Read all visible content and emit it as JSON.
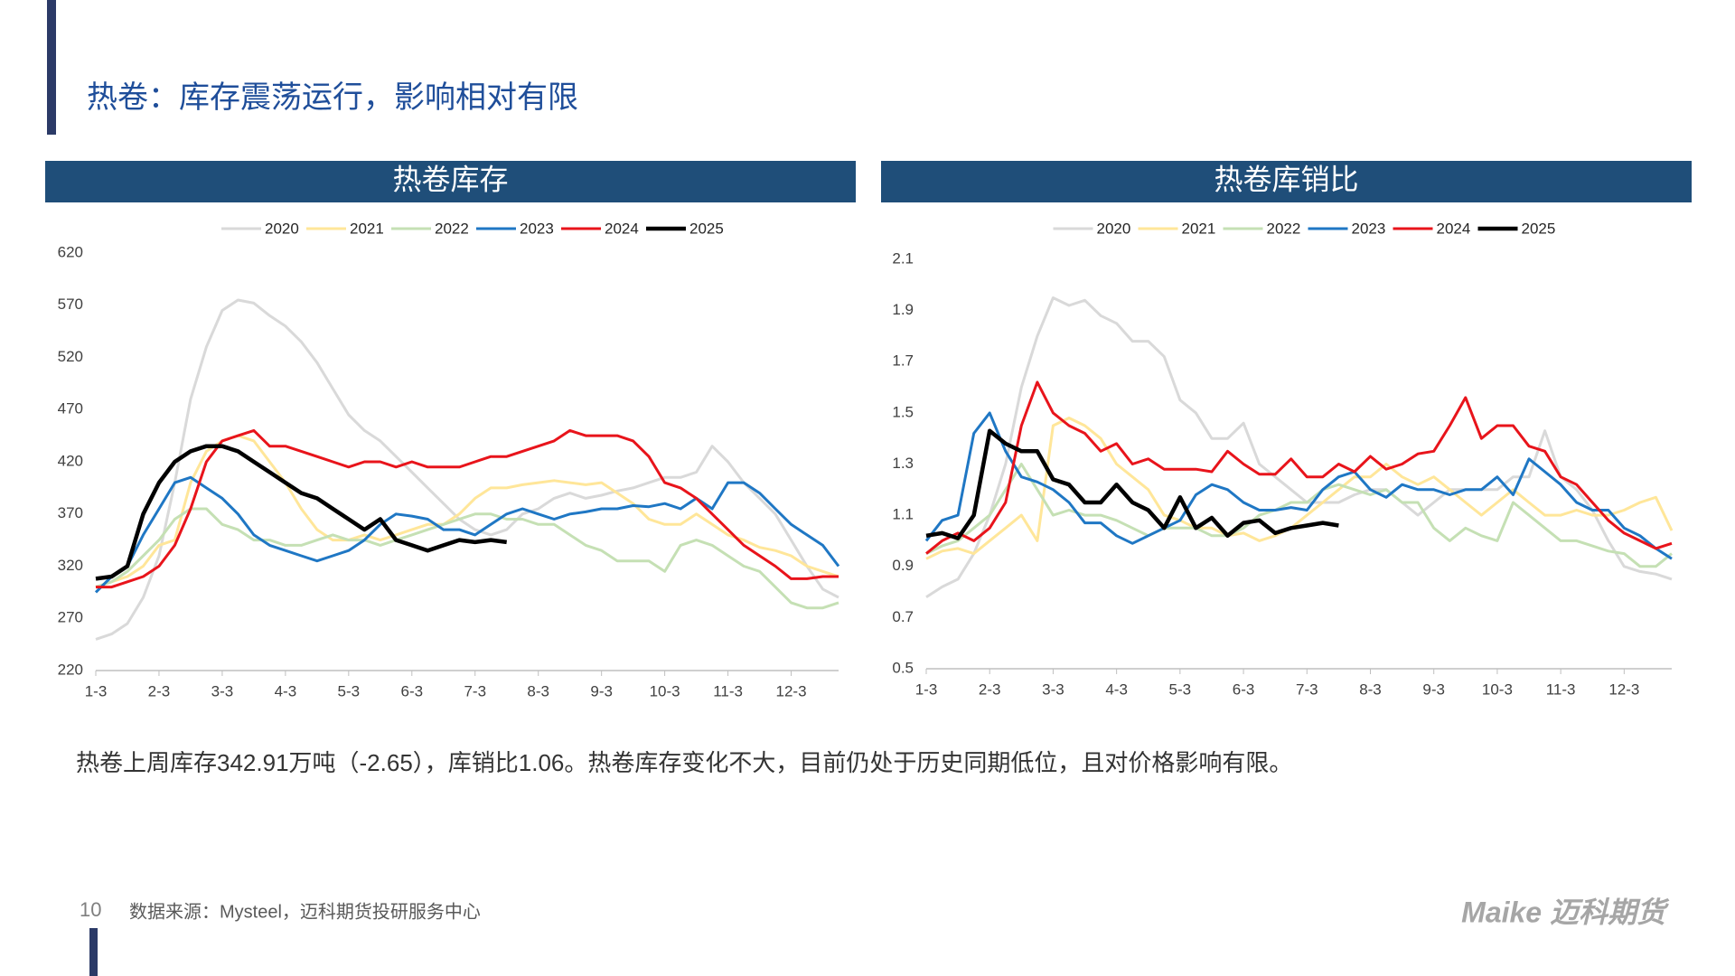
{
  "title": "热卷：库存震荡运行，影响相对有限",
  "summary": "热卷上周库存342.91万吨（-2.65），库销比1.06。热卷库存变化不大，目前仍处于历史同期低位，且对价格影响有限。",
  "page_number": "10",
  "source": "数据来源：Mysteel，迈科期货投研服务中心",
  "logo": "Maike 迈科期货",
  "chart_data": [
    {
      "type": "line",
      "title": "热卷库存",
      "categories": [
        "1-3",
        null,
        null,
        null,
        "2-3",
        null,
        null,
        null,
        "3-3",
        null,
        null,
        null,
        "4-3",
        null,
        null,
        null,
        "5-3",
        null,
        null,
        null,
        "6-3",
        null,
        null,
        null,
        "7-3",
        null,
        null,
        null,
        "8-3",
        null,
        null,
        null,
        "9-3",
        null,
        null,
        null,
        "10-3",
        null,
        null,
        null,
        "11-3",
        null,
        null,
        null,
        "12-3",
        null,
        null,
        null
      ],
      "ylim": [
        220,
        620
      ],
      "yticks": [
        220,
        270,
        320,
        370,
        420,
        470,
        520,
        570,
        620
      ],
      "series": [
        {
          "name": "2020",
          "color": "#d9d9d9",
          "values": [
            250,
            255,
            265,
            290,
            330,
            400,
            480,
            530,
            565,
            575,
            572,
            560,
            550,
            535,
            515,
            490,
            465,
            450,
            440,
            425,
            410,
            395,
            380,
            365,
            355,
            350,
            355,
            370,
            375,
            385,
            390,
            385,
            388,
            392,
            395,
            400,
            405,
            405,
            410,
            435,
            420,
            400,
            385,
            370,
            345,
            320,
            298,
            290
          ]
        },
        {
          "name": "2021",
          "color": "#ffe699",
          "values": [
            300,
            305,
            310,
            320,
            340,
            345,
            400,
            430,
            440,
            445,
            440,
            420,
            400,
            375,
            355,
            345,
            345,
            350,
            345,
            350,
            355,
            360,
            360,
            370,
            385,
            395,
            395,
            398,
            400,
            402,
            400,
            398,
            400,
            390,
            380,
            365,
            360,
            360,
            370,
            360,
            350,
            345,
            338,
            335,
            330,
            320,
            315,
            310
          ]
        },
        {
          "name": "2022",
          "color": "#c5e0b4",
          "values": [
            300,
            305,
            315,
            330,
            345,
            365,
            375,
            375,
            360,
            355,
            345,
            345,
            340,
            340,
            345,
            350,
            345,
            345,
            340,
            345,
            350,
            355,
            360,
            365,
            370,
            370,
            365,
            365,
            360,
            360,
            350,
            340,
            335,
            325,
            325,
            325,
            315,
            340,
            345,
            340,
            330,
            320,
            315,
            300,
            285,
            280,
            280,
            285
          ]
        },
        {
          "name": "2023",
          "color": "#1f77c4",
          "values": [
            295,
            310,
            320,
            350,
            375,
            400,
            405,
            395,
            385,
            370,
            350,
            340,
            335,
            330,
            325,
            330,
            335,
            345,
            360,
            370,
            368,
            365,
            355,
            355,
            350,
            360,
            370,
            375,
            370,
            365,
            370,
            372,
            375,
            375,
            378,
            377,
            380,
            375,
            385,
            375,
            400,
            400,
            390,
            375,
            360,
            350,
            340,
            320
          ]
        },
        {
          "name": "2024",
          "color": "#e8141b",
          "values": [
            300,
            300,
            305,
            310,
            320,
            340,
            375,
            420,
            440,
            445,
            450,
            435,
            435,
            430,
            425,
            420,
            415,
            420,
            420,
            415,
            420,
            415,
            415,
            415,
            420,
            425,
            425,
            430,
            435,
            440,
            450,
            445,
            445,
            445,
            440,
            425,
            400,
            395,
            385,
            370,
            355,
            340,
            330,
            320,
            308,
            308,
            310,
            310
          ]
        },
        {
          "name": "2025",
          "color": "#000000",
          "values": [
            308,
            310,
            320,
            370,
            400,
            420,
            430,
            435,
            435,
            430,
            420,
            410,
            400,
            390,
            385,
            375,
            365,
            355,
            365,
            345,
            340,
            335,
            340,
            345,
            343,
            345,
            343,
            null,
            null,
            null,
            null,
            null,
            null,
            null,
            null,
            null,
            null,
            null,
            null,
            null,
            null,
            null,
            null,
            null,
            null,
            null,
            null,
            null
          ]
        }
      ]
    },
    {
      "type": "line",
      "title": "热卷库销比",
      "categories": [
        "1-3",
        null,
        null,
        null,
        "2-3",
        null,
        null,
        null,
        "3-3",
        null,
        null,
        null,
        "4-3",
        null,
        null,
        null,
        "5-3",
        null,
        null,
        null,
        "6-3",
        null,
        null,
        null,
        "7-3",
        null,
        null,
        null,
        "8-3",
        null,
        null,
        null,
        "9-3",
        null,
        null,
        null,
        "10-3",
        null,
        null,
        null,
        "11-3",
        null,
        null,
        null,
        "12-3",
        null,
        null,
        null
      ],
      "ylim": [
        0.5,
        2.1
      ],
      "yticks": [
        0.5,
        0.7,
        0.9,
        1.1,
        1.3,
        1.5,
        1.7,
        1.9,
        2.1
      ],
      "series": [
        {
          "name": "2020",
          "color": "#d9d9d9",
          "values": [
            0.78,
            0.82,
            0.85,
            0.95,
            1.1,
            1.3,
            1.6,
            1.8,
            1.95,
            1.92,
            1.94,
            1.88,
            1.85,
            1.78,
            1.78,
            1.72,
            1.55,
            1.5,
            1.4,
            1.4,
            1.46,
            1.3,
            1.25,
            1.2,
            1.15,
            1.15,
            1.15,
            1.18,
            1.2,
            1.2,
            1.15,
            1.1,
            1.15,
            1.2,
            1.2,
            1.2,
            1.2,
            1.25,
            1.25,
            1.43,
            1.25,
            1.2,
            1.12,
            1.0,
            0.9,
            0.88,
            0.87,
            0.85
          ]
        },
        {
          "name": "2021",
          "color": "#ffe699",
          "values": [
            0.93,
            0.96,
            0.97,
            0.95,
            1.0,
            1.05,
            1.1,
            1.0,
            1.45,
            1.48,
            1.45,
            1.4,
            1.3,
            1.25,
            1.2,
            1.1,
            1.08,
            1.05,
            1.05,
            1.02,
            1.03,
            1.0,
            1.02,
            1.05,
            1.1,
            1.15,
            1.2,
            1.25,
            1.25,
            1.3,
            1.25,
            1.22,
            1.25,
            1.2,
            1.15,
            1.1,
            1.15,
            1.2,
            1.15,
            1.1,
            1.1,
            1.12,
            1.1,
            1.1,
            1.12,
            1.15,
            1.17,
            1.04
          ]
        },
        {
          "name": "2022",
          "color": "#c5e0b4",
          "values": [
            0.95,
            0.98,
            1.0,
            1.05,
            1.1,
            1.2,
            1.3,
            1.2,
            1.1,
            1.12,
            1.1,
            1.1,
            1.08,
            1.05,
            1.02,
            1.05,
            1.05,
            1.05,
            1.02,
            1.02,
            1.05,
            1.1,
            1.12,
            1.15,
            1.15,
            1.2,
            1.22,
            1.2,
            1.18,
            1.2,
            1.15,
            1.15,
            1.05,
            1.0,
            1.05,
            1.02,
            1.0,
            1.15,
            1.1,
            1.05,
            1.0,
            1.0,
            0.98,
            0.96,
            0.95,
            0.9,
            0.9,
            0.95
          ]
        },
        {
          "name": "2023",
          "color": "#1f77c4",
          "values": [
            1.0,
            1.08,
            1.1,
            1.42,
            1.5,
            1.35,
            1.25,
            1.23,
            1.2,
            1.15,
            1.07,
            1.07,
            1.02,
            0.99,
            1.02,
            1.05,
            1.08,
            1.18,
            1.22,
            1.2,
            1.15,
            1.12,
            1.12,
            1.13,
            1.12,
            1.2,
            1.25,
            1.27,
            1.2,
            1.17,
            1.22,
            1.2,
            1.2,
            1.18,
            1.2,
            1.2,
            1.25,
            1.18,
            1.32,
            1.27,
            1.22,
            1.15,
            1.12,
            1.12,
            1.05,
            1.02,
            0.97,
            0.93
          ]
        },
        {
          "name": "2024",
          "color": "#e8141b",
          "values": [
            0.95,
            1.0,
            1.03,
            1.0,
            1.05,
            1.15,
            1.45,
            1.62,
            1.5,
            1.45,
            1.42,
            1.35,
            1.38,
            1.3,
            1.32,
            1.28,
            1.28,
            1.28,
            1.27,
            1.35,
            1.3,
            1.26,
            1.26,
            1.32,
            1.25,
            1.25,
            1.3,
            1.27,
            1.33,
            1.28,
            1.3,
            1.34,
            1.35,
            1.45,
            1.56,
            1.4,
            1.45,
            1.45,
            1.37,
            1.35,
            1.25,
            1.22,
            1.15,
            1.08,
            1.03,
            1.0,
            0.97,
            0.99
          ]
        },
        {
          "name": "2025",
          "color": "#000000",
          "values": [
            1.02,
            1.03,
            1.01,
            1.1,
            1.43,
            1.38,
            1.35,
            1.35,
            1.24,
            1.22,
            1.15,
            1.15,
            1.22,
            1.15,
            1.12,
            1.05,
            1.17,
            1.05,
            1.09,
            1.02,
            1.07,
            1.08,
            1.03,
            1.05,
            1.06,
            1.07,
            1.06,
            null,
            null,
            null,
            null,
            null,
            null,
            null,
            null,
            null,
            null,
            null,
            null,
            null,
            null,
            null,
            null,
            null,
            null,
            null,
            null,
            null
          ]
        }
      ]
    }
  ]
}
